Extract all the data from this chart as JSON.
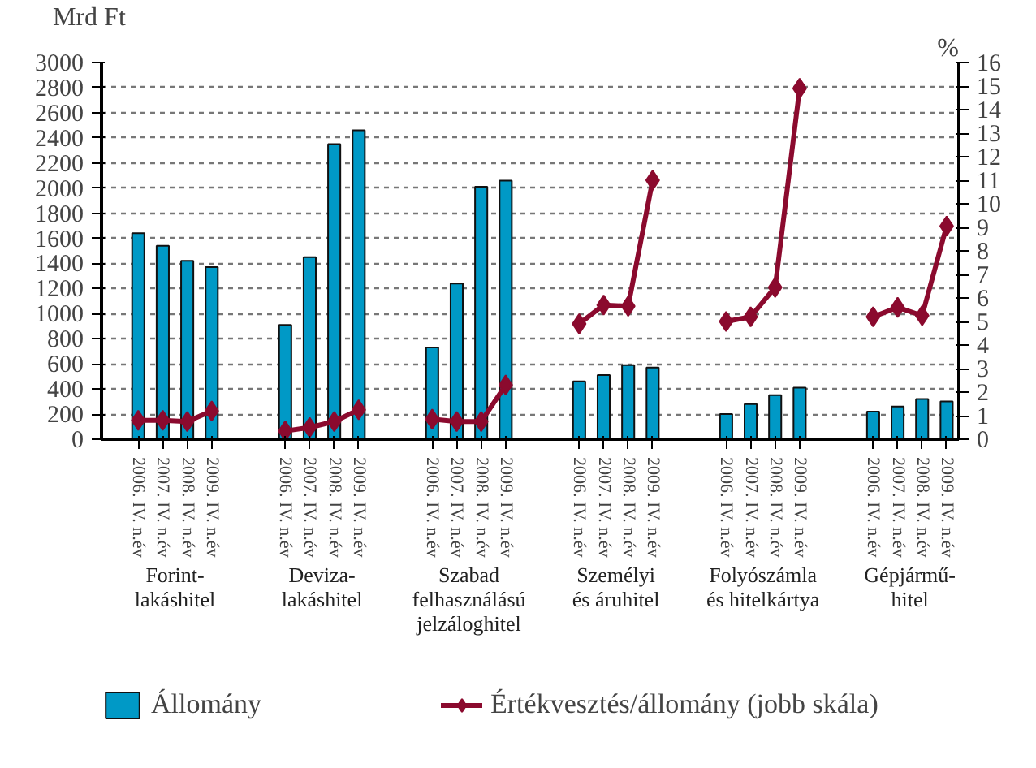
{
  "chart_data": {
    "type": "bar",
    "ylabel": "Mrd Ft",
    "y2label": "%",
    "categories": [
      null,
      "2006. IV. n.év",
      "2007. IV. n.év",
      "2008. IV. n.év",
      "2009. IV. n.év",
      null,
      null,
      "2006. IV. n.év",
      "2007. IV. n.év",
      "2008. IV. n.év",
      "2009. IV. n.év",
      null,
      null,
      "2006. IV. n.év",
      "2007. IV. n.év",
      "2008. IV. n.év",
      "2009. IV. n.év",
      null,
      null,
      "2006. IV. n.év",
      "2007. IV. n.év",
      "2008. IV. n.év",
      "2009. IV. n.év",
      null,
      null,
      "2006. IV. n.év",
      "2007. IV. n.év",
      "2008. IV. n.év",
      "2009. IV. n.év",
      null,
      null,
      "2006. IV. n.év",
      "2007. IV. n.év",
      "2008. IV. n.év",
      "2009. IV. n.év"
    ],
    "series": [
      {
        "name": "Állomány",
        "color": "#0099c6",
        "values": [
          null,
          1640,
          1540,
          1420,
          1370,
          null,
          null,
          910,
          1450,
          2350,
          2460,
          null,
          null,
          730,
          1240,
          2010,
          2060,
          null,
          null,
          460,
          510,
          590,
          570,
          null,
          null,
          200,
          280,
          350,
          410,
          null,
          null,
          220,
          260,
          320,
          300
        ]
      },
      {
        "name": "Értékvesztés/állomány (jobb skála)",
        "type": "line",
        "axis": "y2",
        "color": "#8b0a2e",
        "marker": "diamond",
        "values": [
          null,
          0.8,
          0.8,
          0.75,
          1.2,
          null,
          null,
          0.35,
          0.5,
          0.75,
          1.25,
          null,
          null,
          0.85,
          0.75,
          0.75,
          2.3,
          null,
          null,
          4.9,
          5.7,
          5.65,
          11.0,
          null,
          null,
          5.0,
          5.2,
          6.45,
          14.9,
          null,
          null,
          5.2,
          5.6,
          5.25,
          9.05
        ]
      }
    ],
    "annotations": [
      "Forint-\nlakáshitel",
      "Deviza-\nlakáshitel",
      "Szabad\nfelhasználású\njelzáloghitel",
      "Személyi\nés áruhitel",
      "Folyószámla\nés hitelkártya",
      "Gépjármű-\nhitel"
    ],
    "ylim": [
      0,
      3000
    ],
    "yticks": [
      0,
      200,
      400,
      600,
      800,
      1000,
      1200,
      1400,
      1600,
      1800,
      2000,
      2200,
      2400,
      2600,
      2800,
      3000
    ],
    "y2lim": [
      0,
      16
    ],
    "y2ticks": [
      0,
      1,
      2,
      3,
      4,
      5,
      6,
      7,
      8,
      9,
      10,
      11,
      12,
      13,
      14,
      15,
      16
    ],
    "grid": "y",
    "legend": "bottom"
  }
}
